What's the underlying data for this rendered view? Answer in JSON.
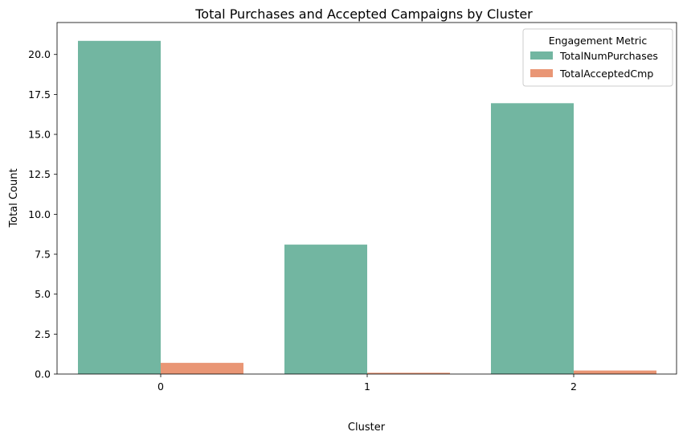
{
  "chart_data": {
    "type": "bar",
    "title": "Total Purchases and Accepted Campaigns by Cluster",
    "xlabel": "Cluster",
    "ylabel": "Total Count",
    "categories": [
      "0",
      "1",
      "2"
    ],
    "series": [
      {
        "name": "TotalNumPurchases",
        "values": [
          20.85,
          8.1,
          16.95
        ],
        "color": "#72b6a1"
      },
      {
        "name": "TotalAcceptedCmp",
        "values": [
          0.7,
          0.08,
          0.22
        ],
        "color": "#e99675"
      }
    ],
    "ylim": [
      0,
      22
    ],
    "yticks": [
      0.0,
      2.5,
      5.0,
      7.5,
      10.0,
      12.5,
      15.0,
      17.5,
      20.0
    ],
    "ytick_labels": [
      "0.0",
      "2.5",
      "5.0",
      "7.5",
      "10.0",
      "12.5",
      "15.0",
      "17.5",
      "20.0"
    ],
    "legend": {
      "title": "Engagement Metric",
      "placement": "top-right"
    },
    "grid": false
  }
}
